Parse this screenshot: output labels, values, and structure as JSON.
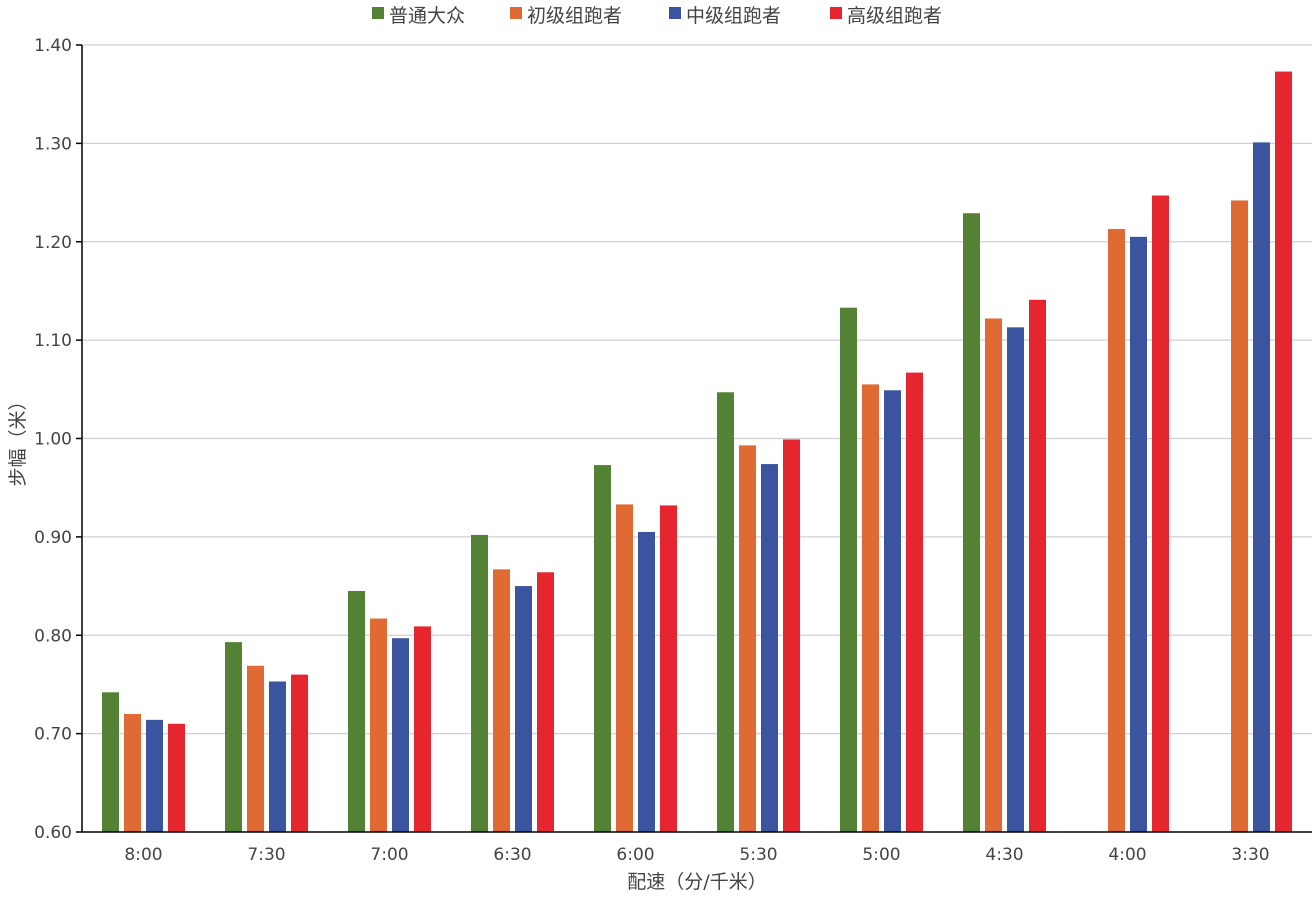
{
  "chart_data": {
    "type": "bar",
    "title": "",
    "xlabel": "配速（分/千米）",
    "ylabel": "步幅（米）",
    "ylim": [
      0.6,
      1.4
    ],
    "yticks": [
      "0.60",
      "0.70",
      "0.80",
      "0.90",
      "1.00",
      "1.10",
      "1.20",
      "1.30",
      "1.40"
    ],
    "grid": true,
    "legend_position": "top",
    "categories": [
      "8:00",
      "7:30",
      "7:00",
      "6:30",
      "6:00",
      "5:30",
      "5:00",
      "4:30",
      "4:00",
      "3:30"
    ],
    "series": [
      {
        "name": "普通大众",
        "color": "#548235",
        "values": [
          0.742,
          0.793,
          0.845,
          0.902,
          0.973,
          1.047,
          1.133,
          1.229,
          null,
          null
        ]
      },
      {
        "name": "初级组跑者",
        "color": "#E06A34",
        "values": [
          0.72,
          0.769,
          0.817,
          0.867,
          0.933,
          0.993,
          1.055,
          1.122,
          1.213,
          1.242
        ]
      },
      {
        "name": "中级组跑者",
        "color": "#3B54A0",
        "values": [
          0.714,
          0.753,
          0.797,
          0.85,
          0.905,
          0.974,
          1.049,
          1.113,
          1.205,
          1.301
        ]
      },
      {
        "name": "高级组跑者",
        "color": "#E5262F",
        "values": [
          0.71,
          0.76,
          0.809,
          0.864,
          0.932,
          0.999,
          1.067,
          1.141,
          1.247,
          1.373
        ]
      }
    ],
    "gridline_color": "#D0D0D0",
    "axis_color": "#000000",
    "text_color": "#444444"
  }
}
